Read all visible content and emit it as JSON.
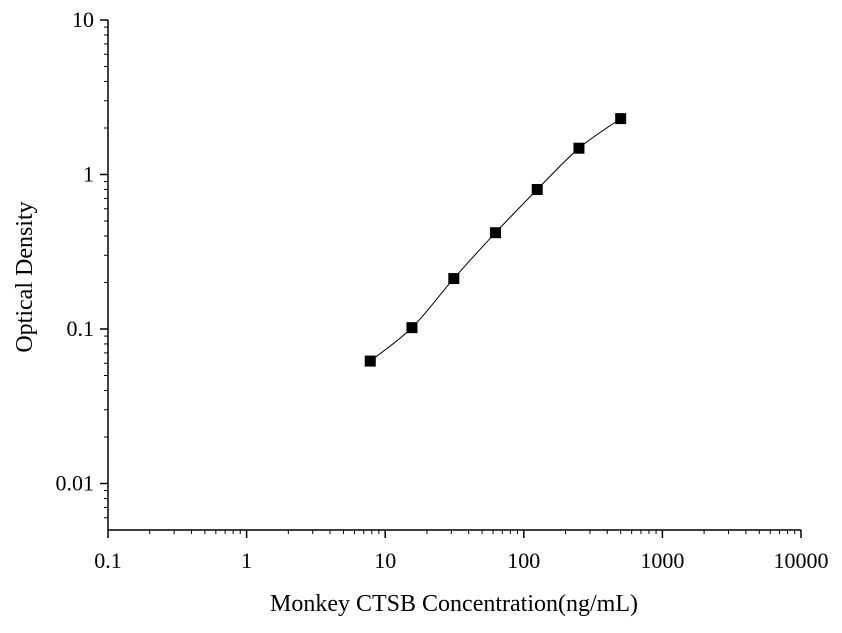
{
  "chart_data": {
    "type": "scatter",
    "title": "",
    "xlabel": "Monkey CTSB Concentration(ng/mL)",
    "ylabel": "Optical Density",
    "x_scale": "log",
    "y_scale": "log",
    "xlim": [
      0.1,
      10000
    ],
    "ylim": [
      0.005,
      10
    ],
    "x_ticks": [
      0.1,
      1,
      10,
      100,
      1000,
      10000
    ],
    "x_tick_labels": [
      "0.1",
      "1",
      "10",
      "100",
      "1000",
      "10000"
    ],
    "y_ticks": [
      0.01,
      0.1,
      1,
      10
    ],
    "y_tick_labels": [
      "0.01",
      "0.1",
      "1",
      "10"
    ],
    "grid": false,
    "legend": "none",
    "series": [
      {
        "x": [
          7.8,
          15.6,
          31.25,
          62.5,
          125,
          250,
          500
        ],
        "y": [
          0.062,
          0.102,
          0.212,
          0.42,
          0.8,
          1.48,
          2.3
        ],
        "marker": "square",
        "connect": "smooth-line"
      }
    ]
  },
  "colors": {
    "axis": "#000000",
    "marker": "#000000",
    "line": "#000000",
    "background": "#ffffff"
  }
}
